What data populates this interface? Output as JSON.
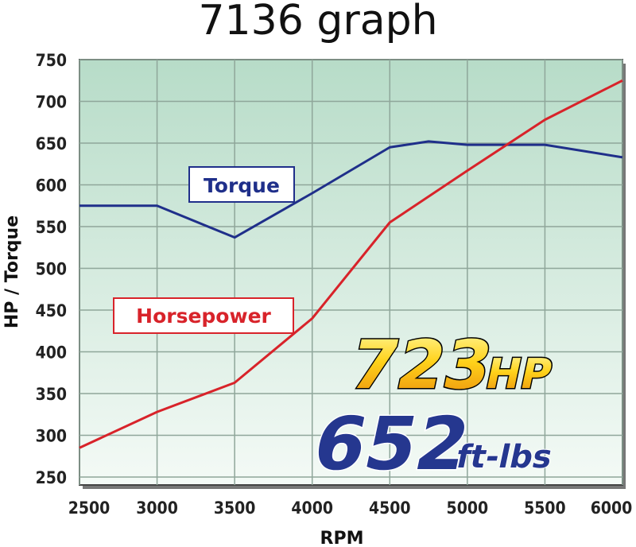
{
  "chart_data": {
    "type": "line",
    "title": "7136 graph",
    "xlabel": "RPM",
    "ylabel": "HP / Torque",
    "xlim": [
      2500,
      6000
    ],
    "ylim": [
      250,
      750
    ],
    "xticks": [
      2500,
      3000,
      3500,
      4000,
      4500,
      5000,
      5500,
      6000
    ],
    "yticks": [
      250,
      300,
      350,
      400,
      450,
      500,
      550,
      600,
      650,
      700,
      750
    ],
    "grid": true,
    "series": [
      {
        "name": "Torque",
        "color": "#1f2f8a",
        "x": [
          2500,
          3000,
          3500,
          4000,
          4500,
          4750,
          5000,
          5500,
          6000
        ],
        "y": [
          575,
          575,
          537,
          590,
          645,
          652,
          648,
          648,
          633
        ]
      },
      {
        "name": "Horsepower",
        "color": "#d8232a",
        "x": [
          2500,
          3000,
          3500,
          4000,
          4500,
          5000,
          5500,
          6000
        ],
        "y": [
          285,
          328,
          363,
          440,
          555,
          617,
          678,
          725
        ]
      }
    ],
    "annotations": {
      "hp_value": "723",
      "hp_unit": "HP",
      "tq_value": "652",
      "tq_unit": "ft-lbs"
    }
  }
}
